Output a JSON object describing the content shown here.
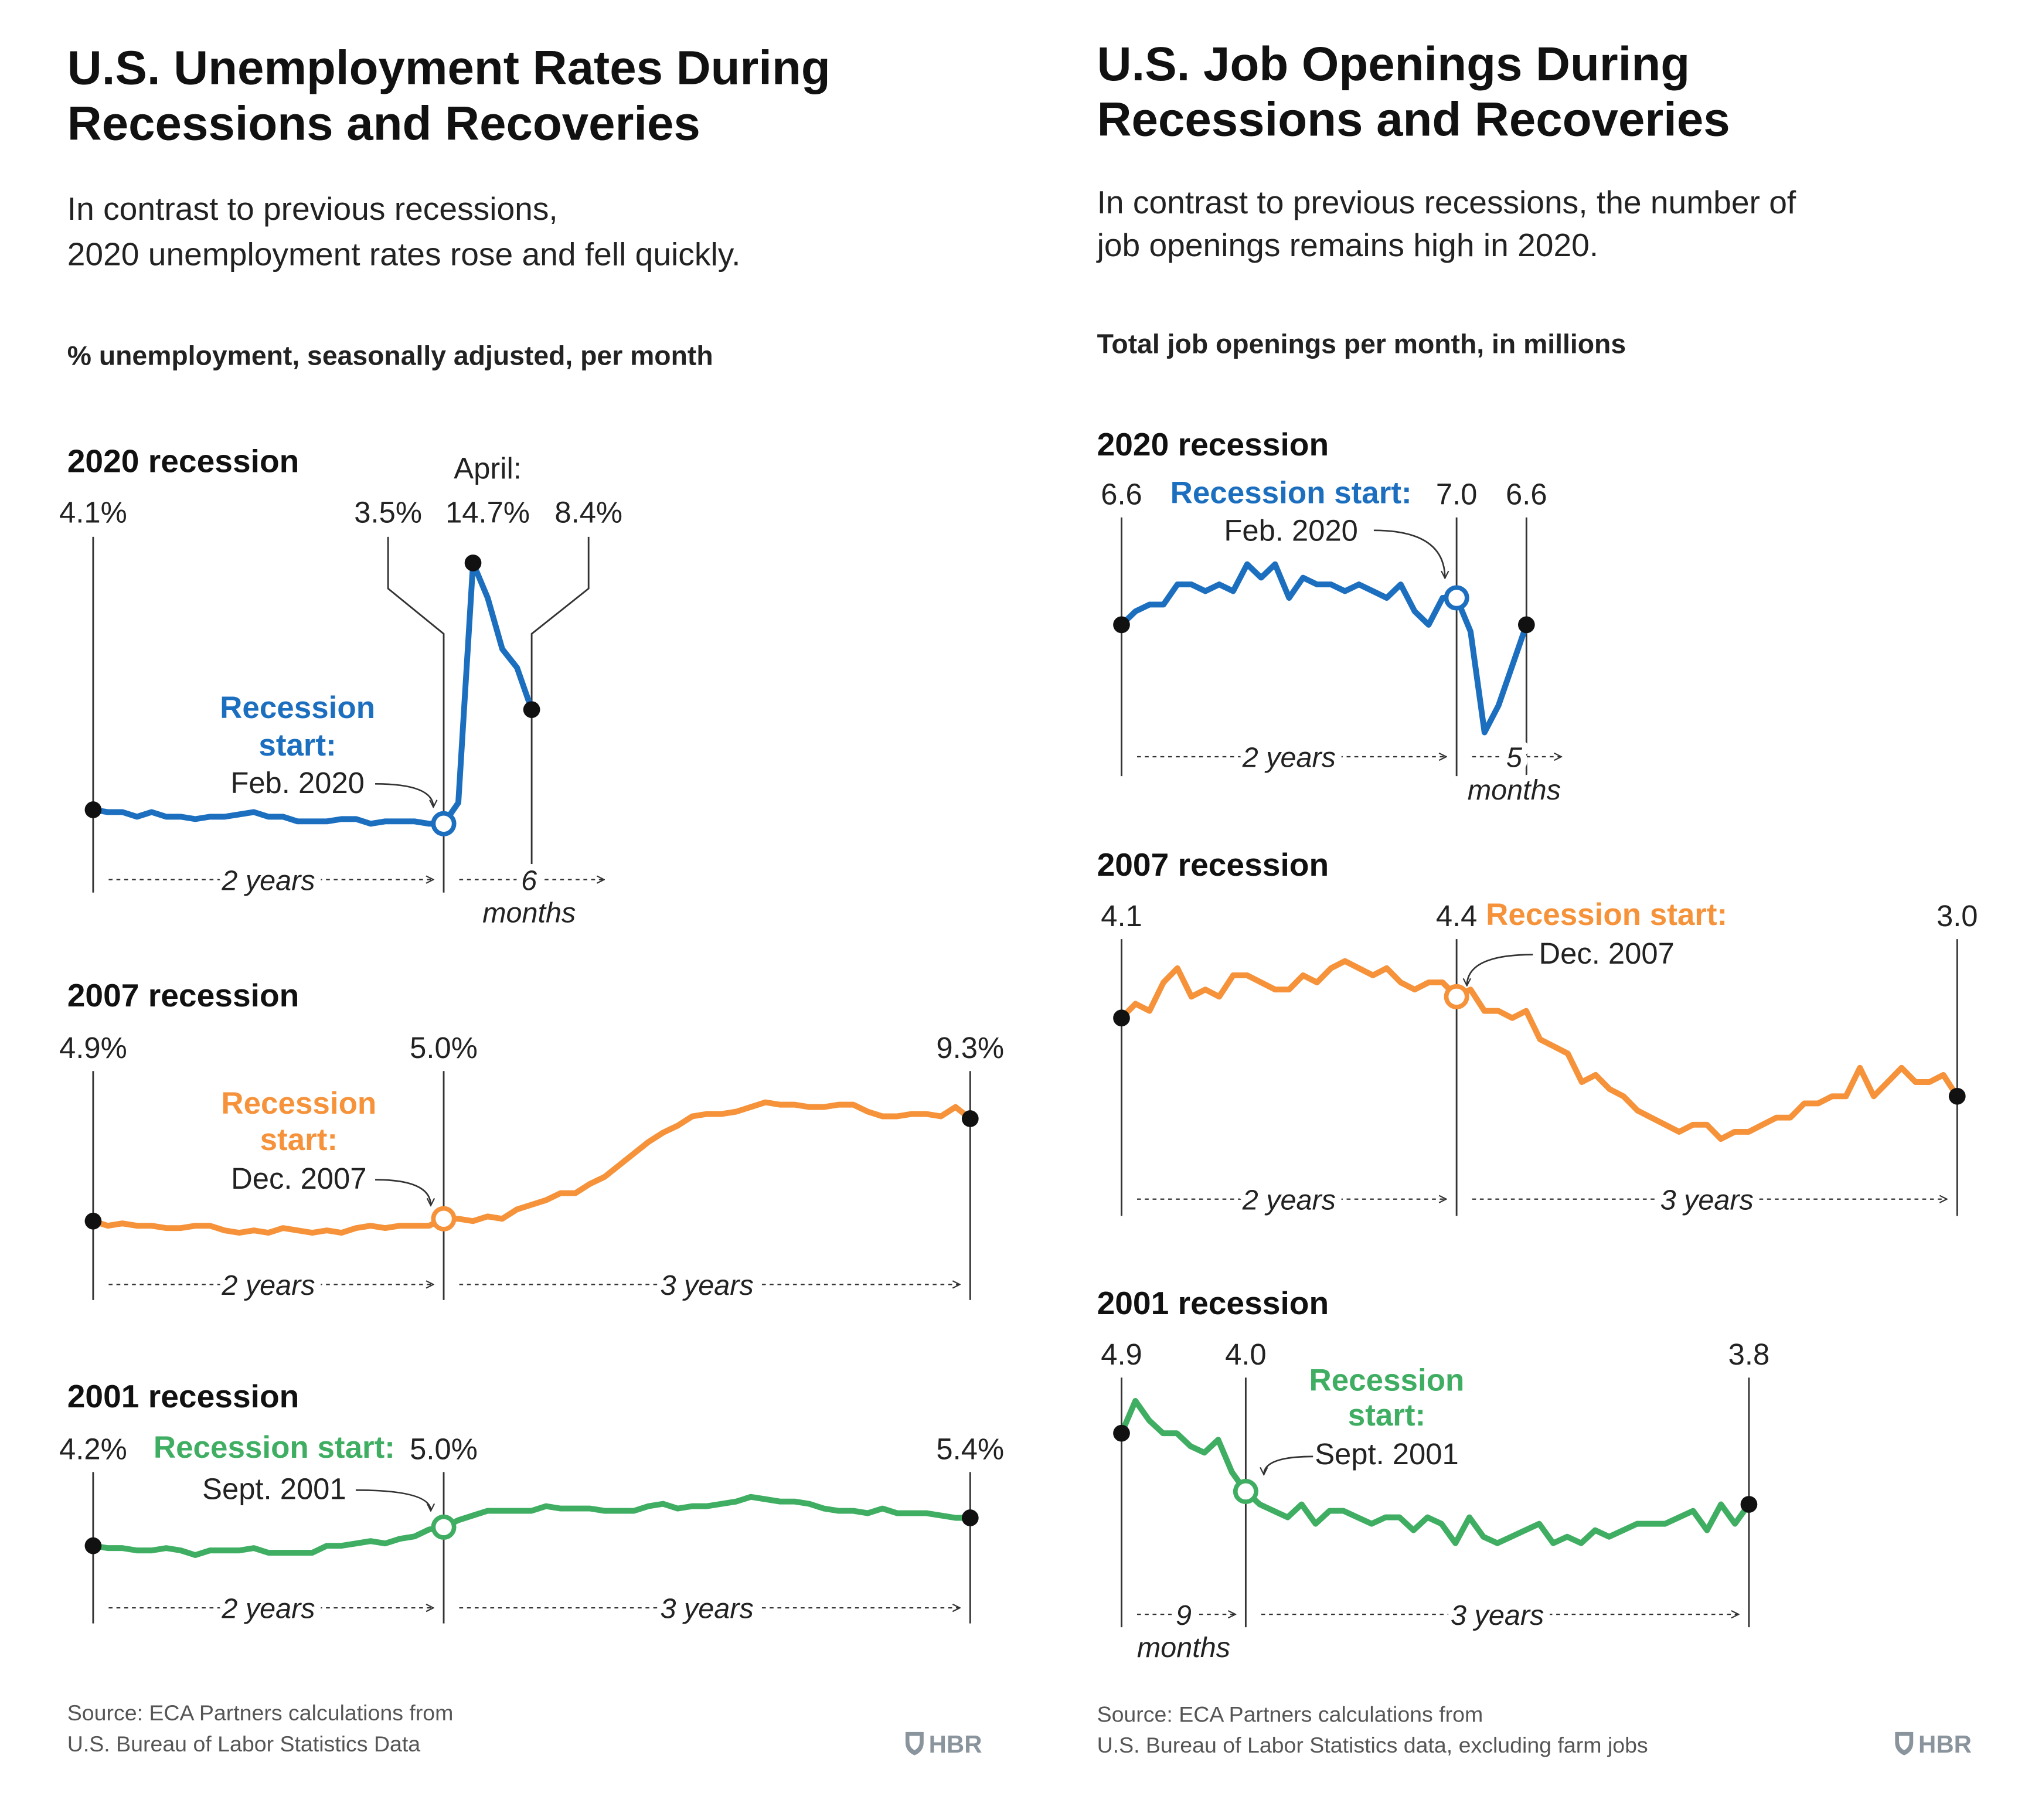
{
  "panels": [
    {
      "title": [
        "U.S. Unemployment Rates During",
        "Recessions and Recoveries"
      ],
      "subtitle": [
        "In contrast to previous recessions,",
        "2020 unemployment rates rose and fell quickly."
      ],
      "unit_label": "% unemployment, seasonally adjusted, per month",
      "source": [
        "Source: ECA Partners calculations from",
        "U.S. Bureau of Labor Statistics Data"
      ],
      "logo": "HBR"
    },
    {
      "title": [
        "U.S. Job Openings During",
        "Recessions and Recoveries"
      ],
      "subtitle": [
        "In contrast to previous recessions, the number of",
        "job openings remains high in 2020."
      ],
      "unit_label": "Total job openings per month, in millions",
      "source": [
        "Source: ECA Partners calculations from",
        "U.S. Bureau of Labor Statistics data, excluding farm jobs"
      ],
      "logo": "HBR"
    }
  ],
  "chart_data": [
    {
      "type": "line",
      "title": "2020 recession",
      "color": "#1c6fbf",
      "values": [
        4.1,
        4.0,
        4.0,
        3.8,
        4.0,
        3.8,
        3.8,
        3.7,
        3.8,
        3.8,
        3.9,
        4.0,
        3.8,
        3.8,
        3.6,
        3.6,
        3.6,
        3.7,
        3.7,
        3.5,
        3.6,
        3.6,
        3.6,
        3.5,
        3.5,
        4.4,
        14.7,
        13.2,
        11.0,
        10.2,
        8.4
      ],
      "value_labels": {
        "0": "4.1%",
        "24": "3.5%",
        "26": "14.7%",
        "30": "8.4%"
      },
      "annotation": "April:",
      "recession_label": [
        "Recession",
        "start:"
      ],
      "recession_date": "Feb. 2020",
      "spans": [
        {
          "label": "2 years"
        },
        {
          "label": "6",
          "sublabel": "months"
        }
      ]
    },
    {
      "type": "line",
      "title": "2007 recession",
      "color": "#f5923a",
      "values": [
        4.9,
        4.7,
        4.8,
        4.7,
        4.7,
        4.6,
        4.6,
        4.7,
        4.7,
        4.5,
        4.4,
        4.5,
        4.4,
        4.6,
        4.5,
        4.4,
        4.5,
        4.4,
        4.6,
        4.7,
        4.6,
        4.7,
        4.7,
        4.7,
        5.0,
        5.0,
        4.9,
        5.1,
        5.0,
        5.4,
        5.6,
        5.8,
        6.1,
        6.1,
        6.5,
        6.8,
        7.3,
        7.8,
        8.3,
        8.7,
        9.0,
        9.4,
        9.5,
        9.5,
        9.6,
        9.8,
        10.0,
        9.9,
        9.9,
        9.8,
        9.8,
        9.9,
        9.9,
        9.6,
        9.4,
        9.4,
        9.5,
        9.5,
        9.4,
        9.8,
        9.3
      ],
      "value_labels": {
        "0": "4.9%",
        "24": "5.0%",
        "60": "9.3%"
      },
      "recession_label": [
        "Recession",
        "start:"
      ],
      "recession_date": "Dec. 2007",
      "spans": [
        {
          "label": "2 years"
        },
        {
          "label": "3 years"
        }
      ]
    },
    {
      "type": "line",
      "title": "2001 recession",
      "color": "#3fae62",
      "values": [
        4.2,
        4.1,
        4.1,
        4.0,
        4.0,
        4.1,
        4.0,
        3.8,
        4.0,
        4.0,
        4.0,
        4.1,
        3.9,
        3.9,
        3.9,
        3.9,
        4.2,
        4.2,
        4.3,
        4.4,
        4.3,
        4.5,
        4.6,
        4.9,
        5.0,
        5.3,
        5.5,
        5.7,
        5.7,
        5.7,
        5.7,
        5.9,
        5.8,
        5.8,
        5.8,
        5.7,
        5.7,
        5.7,
        5.9,
        6.0,
        5.8,
        5.9,
        5.9,
        6.0,
        6.1,
        6.3,
        6.2,
        6.1,
        6.1,
        6.0,
        5.8,
        5.7,
        5.7,
        5.6,
        5.8,
        5.6,
        5.6,
        5.6,
        5.5,
        5.4,
        5.4
      ],
      "value_labels": {
        "0": "4.2%",
        "24": "5.0%",
        "60": "5.4%"
      },
      "recession_label": [
        "Recession start:"
      ],
      "recession_date": "Sept. 2001",
      "spans": [
        {
          "label": "2 years"
        },
        {
          "label": "3 years"
        }
      ]
    },
    {
      "type": "line",
      "title": "2020 recession",
      "color": "#1c6fbf",
      "values": [
        6.6,
        6.8,
        6.9,
        6.9,
        7.2,
        7.2,
        7.1,
        7.2,
        7.1,
        7.5,
        7.3,
        7.5,
        7.0,
        7.3,
        7.2,
        7.2,
        7.1,
        7.2,
        7.1,
        7.0,
        7.2,
        6.8,
        6.6,
        7.0,
        7.0,
        6.5,
        5.0,
        5.4,
        6.0,
        6.6
      ],
      "value_labels": {
        "0": "6.6",
        "24": "7.0",
        "29": "6.6"
      },
      "recession_label": [
        "Recession start:"
      ],
      "recession_date": "Feb. 2020",
      "spans": [
        {
          "label": "2 years"
        },
        {
          "label": "5",
          "sublabel": "months"
        }
      ]
    },
    {
      "type": "line",
      "title": "2007 recession",
      "color": "#f5923a",
      "values": [
        4.1,
        4.3,
        4.2,
        4.6,
        4.8,
        4.4,
        4.5,
        4.4,
        4.7,
        4.7,
        4.6,
        4.5,
        4.5,
        4.7,
        4.6,
        4.8,
        4.9,
        4.8,
        4.7,
        4.8,
        4.6,
        4.5,
        4.6,
        4.6,
        4.4,
        4.5,
        4.2,
        4.2,
        4.1,
        4.2,
        3.8,
        3.7,
        3.6,
        3.2,
        3.3,
        3.1,
        3.0,
        2.8,
        2.7,
        2.6,
        2.5,
        2.6,
        2.6,
        2.4,
        2.5,
        2.5,
        2.6,
        2.7,
        2.7,
        2.9,
        2.9,
        3.0,
        3.0,
        3.4,
        3.0,
        3.2,
        3.4,
        3.2,
        3.2,
        3.3,
        3.0
      ],
      "value_labels": {
        "0": "4.1",
        "24": "4.4",
        "60": "3.0"
      },
      "recession_label": [
        "Recession start:"
      ],
      "recession_date": "Dec. 2007",
      "spans": [
        {
          "label": "2 years"
        },
        {
          "label": "3 years"
        }
      ]
    },
    {
      "type": "line",
      "title": "2001 recession",
      "color": "#3fae62",
      "values": [
        4.9,
        5.4,
        5.1,
        4.9,
        4.9,
        4.7,
        4.6,
        4.8,
        4.3,
        4.0,
        3.8,
        3.7,
        3.6,
        3.8,
        3.5,
        3.7,
        3.7,
        3.6,
        3.5,
        3.6,
        3.6,
        3.4,
        3.6,
        3.5,
        3.2,
        3.6,
        3.3,
        3.2,
        3.3,
        3.4,
        3.5,
        3.2,
        3.3,
        3.2,
        3.4,
        3.3,
        3.4,
        3.5,
        3.5,
        3.5,
        3.6,
        3.7,
        3.4,
        3.8,
        3.5,
        3.8
      ],
      "value_labels": {
        "0": "4.9",
        "9": "4.0",
        "45": "3.8"
      },
      "recession_label": [
        "Recession",
        "start:"
      ],
      "recession_date": "Sept. 2001",
      "spans": [
        {
          "label": "9",
          "sublabel": "months"
        },
        {
          "label": "3 years"
        }
      ]
    }
  ]
}
